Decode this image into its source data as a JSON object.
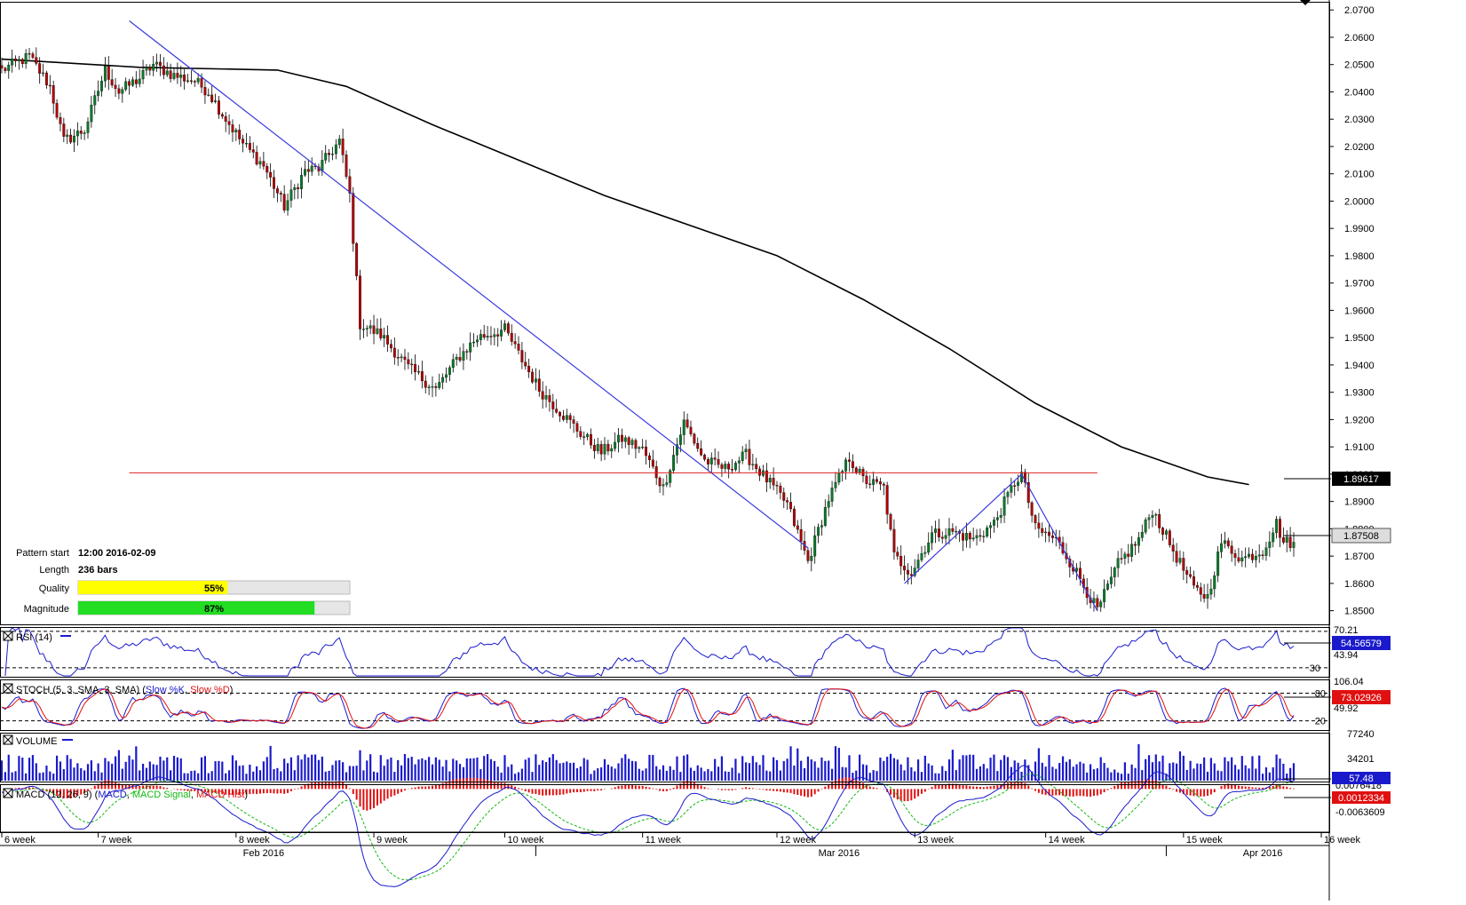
{
  "colors": {
    "background": "#ffffff",
    "bull_candle": "#0a7a2a",
    "bear_candle": "#b00000",
    "sma_line": "#000000",
    "trendline": "#3a3adf",
    "level_line": "#e02020",
    "rsi_line": "#1a1acc",
    "stoch_k": "#1a1acc",
    "stoch_d": "#e01010",
    "volume_bar": "#1a1acc",
    "macd_line": "#1a1acc",
    "macd_signal": "#12b812",
    "macd_hist": "#e01010",
    "quality_fill": "#ffff00",
    "magnitude_fill": "#22dd22",
    "bar_track": "#e6e6e6",
    "current_price_tag": "#000000",
    "rsi_tag": "#1a1acc",
    "stoch_tag": "#e01010",
    "volume_tag": "#1a1acc",
    "macd_tag": "#e01010"
  },
  "pattern_info": {
    "start_label": "Pattern start",
    "start_value": "12:00 2016-02-09",
    "length_label": "Length",
    "length_value": "236 bars",
    "quality_label": "Quality",
    "quality_value": "55%",
    "quality_fraction": 0.55,
    "magnitude_label": "Magnitude",
    "magnitude_value": "87%",
    "magnitude_fraction": 0.87
  },
  "chart_data": [
    {
      "panel": "price",
      "type": "candlestick",
      "ylim": [
        1.845,
        2.073
      ],
      "y_ticks": [
        "2.0700",
        "2.0600",
        "2.0500",
        "2.0400",
        "2.0300",
        "2.0200",
        "2.0100",
        "2.0000",
        "1.9900",
        "1.9800",
        "1.9700",
        "1.9600",
        "1.9500",
        "1.9400",
        "1.9300",
        "1.9200",
        "1.9100",
        "1.9000",
        "1.8900",
        "1.8800",
        "1.8700",
        "1.8600",
        "1.8500"
      ],
      "y_tick_values": [
        2.07,
        2.06,
        2.05,
        2.04,
        2.03,
        2.02,
        2.01,
        2.0,
        1.99,
        1.98,
        1.97,
        1.96,
        1.95,
        1.94,
        1.93,
        1.92,
        1.91,
        1.9,
        1.89,
        1.88,
        1.87,
        1.86,
        1.85
      ],
      "bar_count": 376,
      "price_path": [
        [
          0,
          2.048
        ],
        [
          8,
          2.053
        ],
        [
          14,
          2.042
        ],
        [
          18,
          2.022
        ],
        [
          24,
          2.026
        ],
        [
          30,
          2.048
        ],
        [
          34,
          2.04
        ],
        [
          40,
          2.045
        ],
        [
          44,
          2.05
        ],
        [
          50,
          2.046
        ],
        [
          56,
          2.044
        ],
        [
          60,
          2.04
        ],
        [
          64,
          2.032
        ],
        [
          70,
          2.021
        ],
        [
          76,
          2.013
        ],
        [
          82,
          1.998
        ],
        [
          88,
          2.011
        ],
        [
          92,
          2.012
        ],
        [
          98,
          2.022
        ],
        [
          101,
          2.002
        ],
        [
          104,
          1.955
        ],
        [
          110,
          1.951
        ],
        [
          118,
          1.939
        ],
        [
          126,
          1.931
        ],
        [
          132,
          1.942
        ],
        [
          138,
          1.95
        ],
        [
          146,
          1.953
        ],
        [
          150,
          1.944
        ],
        [
          156,
          1.931
        ],
        [
          162,
          1.923
        ],
        [
          168,
          1.915
        ],
        [
          174,
          1.908
        ],
        [
          180,
          1.913
        ],
        [
          186,
          1.909
        ],
        [
          192,
          1.895
        ],
        [
          198,
          1.919
        ],
        [
          204,
          1.905
        ],
        [
          210,
          1.902
        ],
        [
          216,
          1.907
        ],
        [
          222,
          1.898
        ],
        [
          228,
          1.889
        ],
        [
          234,
          1.868
        ],
        [
          240,
          1.891
        ],
        [
          246,
          1.906
        ],
        [
          250,
          1.898
        ],
        [
          256,
          1.895
        ],
        [
          259,
          1.87
        ],
        [
          264,
          1.864
        ],
        [
          270,
          1.878
        ],
        [
          276,
          1.879
        ],
        [
          282,
          1.876
        ],
        [
          288,
          1.882
        ],
        [
          294,
          1.897
        ],
        [
          296,
          1.9
        ],
        [
          300,
          1.88
        ],
        [
          306,
          1.876
        ],
        [
          312,
          1.864
        ],
        [
          318,
          1.85
        ],
        [
          324,
          1.867
        ],
        [
          330,
          1.876
        ],
        [
          334,
          1.887
        ],
        [
          340,
          1.872
        ],
        [
          346,
          1.858
        ],
        [
          350,
          1.855
        ],
        [
          354,
          1.875
        ],
        [
          360,
          1.869
        ],
        [
          366,
          1.872
        ],
        [
          370,
          1.882
        ],
        [
          372,
          1.8751
        ]
      ],
      "sma": {
        "values": [
          [
            0,
            2.052
          ],
          [
            40,
            2.049
          ],
          [
            80,
            2.048
          ],
          [
            100,
            2.042
          ],
          [
            125,
            2.028
          ],
          [
            150,
            2.015
          ],
          [
            175,
            2.002
          ],
          [
            200,
            1.991
          ],
          [
            225,
            1.98
          ],
          [
            250,
            1.964
          ],
          [
            275,
            1.946
          ],
          [
            300,
            1.926
          ],
          [
            325,
            1.91
          ],
          [
            350,
            1.899
          ],
          [
            362,
            1.8962
          ]
        ],
        "current_label": "1.89617"
      },
      "current_price_label": "1.87508",
      "trendlines": [
        [
          [
            37,
            2.066
          ],
          [
            234,
            1.873
          ]
        ],
        [
          [
            262,
            1.86
          ],
          [
            296,
            1.9
          ],
          [
            318,
            1.85
          ]
        ]
      ],
      "horizontal_level": {
        "value": 1.9005,
        "from_bar": 37,
        "to_bar": 318
      }
    },
    {
      "panel": "rsi",
      "type": "line",
      "title": "RSI (14)",
      "ylim": [
        20,
        75
      ],
      "levels": [
        70.21,
        30
      ],
      "level_labels": [
        "70.21",
        "30"
      ],
      "extra_label": "43.94",
      "current_label": "54.56579"
    },
    {
      "panel": "stochastic",
      "type": "line",
      "title_prefix": "STOCH (5, 3, SMA, 3, SMA)",
      "k_name": "Slow %K",
      "d_name": "Slow %D",
      "ylim": [
        0,
        110
      ],
      "levels": [
        80,
        20
      ],
      "level_labels": [
        "80",
        "20"
      ],
      "extra_labels": [
        "106.04",
        "49.92"
      ],
      "current_label": "73.02926"
    },
    {
      "panel": "volume",
      "type": "bar",
      "title": "VOLUME",
      "ylim": [
        0,
        78000
      ],
      "axis_labels": [
        "77240",
        "34201"
      ],
      "current_label": "57.48"
    },
    {
      "panel": "macd",
      "type": "line",
      "title_prefix": "MACD (12, 26, 9)",
      "macd_name": "MACD",
      "signal_name": "MACD Signal",
      "hist_name": "MACD Hist",
      "ylim": [
        -0.0075,
        0.0015
      ],
      "axis_labels": [
        "0.0076418",
        "-0.0063609"
      ],
      "current_label": "0.0012334"
    }
  ],
  "x_axis": {
    "weeks": [
      "6 week",
      "7 week",
      "8 week",
      "9 week",
      "10 week",
      "11 week",
      "12 week",
      "13 week",
      "14 week",
      "15 week",
      "16 week"
    ],
    "week_start_bars": [
      0,
      28,
      68,
      108,
      146,
      186,
      225,
      265,
      303,
      343,
      383
    ],
    "months": [
      "Feb 2016",
      "Mar 2016",
      "Apr 2016"
    ],
    "month_center_bars": [
      76,
      243,
      366
    ],
    "month_start_bars": [
      155,
      338
    ]
  }
}
